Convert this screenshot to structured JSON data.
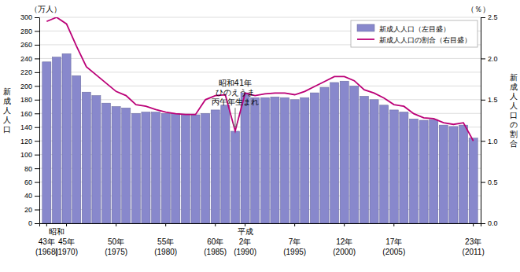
{
  "chart_data": {
    "type": "bar",
    "categories": [
      "43年\n(1968)",
      null,
      "45年\n(1970)",
      null,
      null,
      null,
      null,
      "50年\n(1975)",
      null,
      null,
      null,
      null,
      "55年\n(1980)",
      null,
      null,
      null,
      null,
      "60年\n(1985)",
      null,
      null,
      "2年\n(1990)",
      null,
      null,
      null,
      null,
      "7年\n(1995)",
      null,
      null,
      null,
      null,
      "12年\n(2000)",
      null,
      null,
      null,
      null,
      "17年\n(2005)",
      null,
      null,
      null,
      null,
      null,
      null,
      null,
      "23年\n(2011)"
    ],
    "series": [
      {
        "name": "新成人人口（左目盛）",
        "type": "bar",
        "color": "#8888cc",
        "values": [
          235,
          242,
          247,
          215,
          191,
          186,
          175,
          170,
          168,
          160,
          162,
          162,
          160,
          160,
          159,
          158,
          160,
          165,
          172,
          134,
          190,
          183,
          183,
          184,
          183,
          180,
          183,
          190,
          198,
          205,
          207,
          200,
          185,
          180,
          172,
          165,
          162,
          152,
          150,
          151,
          143,
          141,
          143,
          124
        ]
      },
      {
        "name": "新成人人口の割合（右目盛）",
        "type": "line",
        "color": "#bb0077",
        "axis": "y2",
        "values": [
          2.45,
          2.5,
          2.42,
          2.15,
          1.9,
          1.8,
          1.7,
          1.6,
          1.55,
          1.44,
          1.42,
          1.38,
          1.35,
          1.33,
          1.32,
          1.32,
          1.5,
          1.55,
          1.56,
          1.12,
          1.58,
          1.55,
          1.57,
          1.58,
          1.58,
          1.56,
          1.6,
          1.66,
          1.72,
          1.78,
          1.78,
          1.73,
          1.62,
          1.58,
          1.52,
          1.44,
          1.42,
          1.33,
          1.28,
          1.27,
          1.22,
          1.2,
          1.22,
          1.0
        ]
      }
    ],
    "ylim": [
      0,
      300
    ],
    "yticks": [
      0,
      20,
      40,
      60,
      80,
      100,
      120,
      140,
      160,
      180,
      200,
      220,
      240,
      260,
      280,
      300
    ],
    "y2lim": [
      0,
      2.5
    ],
    "y2ticks": [
      {
        "value": 0,
        "label": "0.0"
      },
      0.5,
      {
        "value": 1,
        "label": "1.0"
      },
      1.5,
      {
        "value": 2,
        "label": "2.0"
      },
      2.5
    ],
    "y_label": "新\n成\n人\n人\n口",
    "y2_label": "新\n成\n人\n人\n口\n の\n割\n合",
    "y_unit_label": "（万人）",
    "y2_unit_label": "（％）",
    "annotations": [
      {
        "text": "昭和41年\nひのえうま\n丙午年生まれ",
        "x": 19,
        "y": 168,
        "y_end": 140
      },
      {
        "text": "昭和",
        "x": 1
      },
      {
        "text": "平成",
        "x": 20
      }
    ],
    "grid": true,
    "legend": "upper right"
  }
}
